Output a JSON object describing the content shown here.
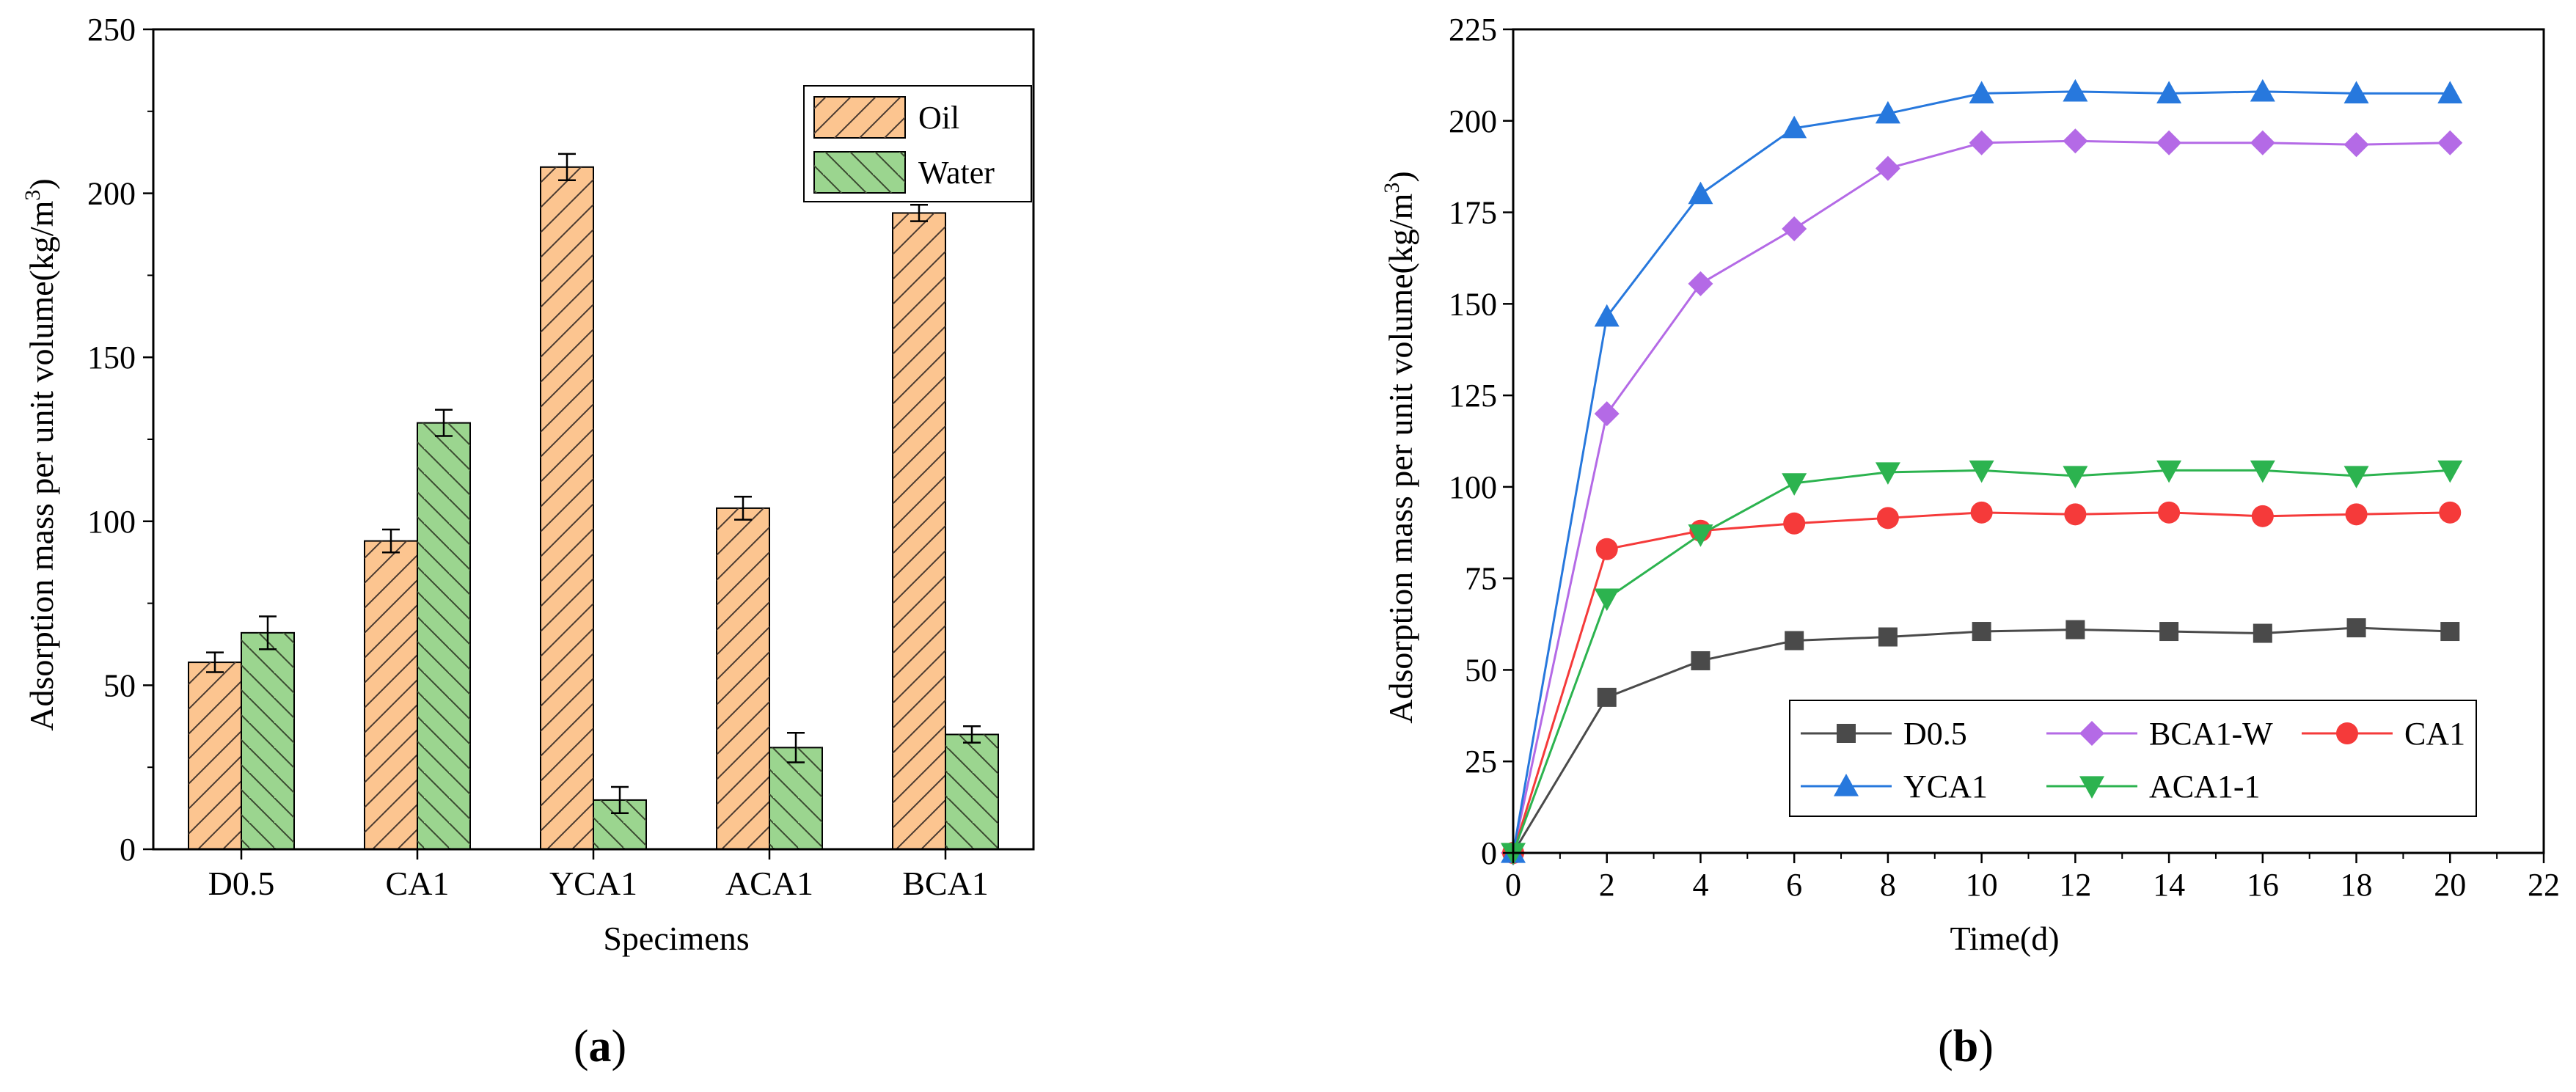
{
  "chart_data": [
    {
      "type": "bar",
      "panel_label": "a",
      "title": "",
      "xlabel": "Specimens",
      "ylabel": "Adsorption mass per unit volume(kg/m",
      "ylabel_sup": "3",
      "ylabel_close": ")",
      "ylim": [
        0,
        250
      ],
      "yticks": [
        0,
        50,
        100,
        150,
        200,
        250
      ],
      "categories": [
        "D0.5",
        "CA1",
        "YCA1",
        "ACA1",
        "BCA1"
      ],
      "series": [
        {
          "name": "Oil",
          "values": [
            57,
            94,
            208,
            104,
            194
          ],
          "errors": [
            3,
            3.5,
            4,
            3.5,
            2.5
          ],
          "color": "#fcc590",
          "hatch": "forward"
        },
        {
          "name": "Water",
          "values": [
            66,
            130,
            15,
            31,
            35
          ],
          "errors": [
            5,
            4,
            4,
            4.5,
            2.5
          ],
          "color": "#9bd58f",
          "hatch": "back"
        }
      ],
      "legend_position": "top-right"
    },
    {
      "type": "line",
      "panel_label": "b",
      "title": "",
      "xlabel": "Time(d)",
      "ylabel": "Adsorption mass per unit volume(kg/m",
      "ylabel_sup": "3",
      "ylabel_close": ")",
      "xlim": [
        0,
        22
      ],
      "ylim": [
        0,
        225
      ],
      "xticks": [
        0,
        2,
        4,
        6,
        8,
        10,
        12,
        14,
        16,
        18,
        20,
        22
      ],
      "yticks": [
        0,
        25,
        50,
        75,
        100,
        125,
        150,
        175,
        200,
        225
      ],
      "x": [
        0,
        2,
        4,
        6,
        8,
        10,
        12,
        14,
        16,
        18,
        20
      ],
      "series": [
        {
          "name": "D0.5",
          "color": "#4a4a4a",
          "marker": "square",
          "values": [
            0,
            42.5,
            52.5,
            58,
            59,
            60.5,
            61,
            60.5,
            60,
            61.5,
            60.5
          ]
        },
        {
          "name": "BCA1-W",
          "color": "#b46ae6",
          "marker": "diamond",
          "values": [
            0,
            120,
            155.5,
            170.5,
            187,
            194,
            194.5,
            194,
            194,
            193.5,
            194
          ]
        },
        {
          "name": "CA1",
          "color": "#f53a3a",
          "marker": "circle",
          "values": [
            0,
            83,
            88,
            90,
            91.5,
            93,
            92.5,
            93,
            92,
            92.5,
            93
          ]
        },
        {
          "name": "YCA1",
          "color": "#2778dd",
          "marker": "triangle-up",
          "values": [
            0,
            146.5,
            180,
            198,
            202,
            207.5,
            208,
            207.5,
            208,
            207.5,
            207.5
          ]
        },
        {
          "name": "ACA1-1",
          "color": "#2cb34f",
          "marker": "triangle-down",
          "values": [
            0,
            69.5,
            87,
            101,
            104,
            104.5,
            103,
            104.5,
            104.5,
            103,
            104.5
          ]
        }
      ],
      "legend_position": "bottom-right"
    }
  ]
}
